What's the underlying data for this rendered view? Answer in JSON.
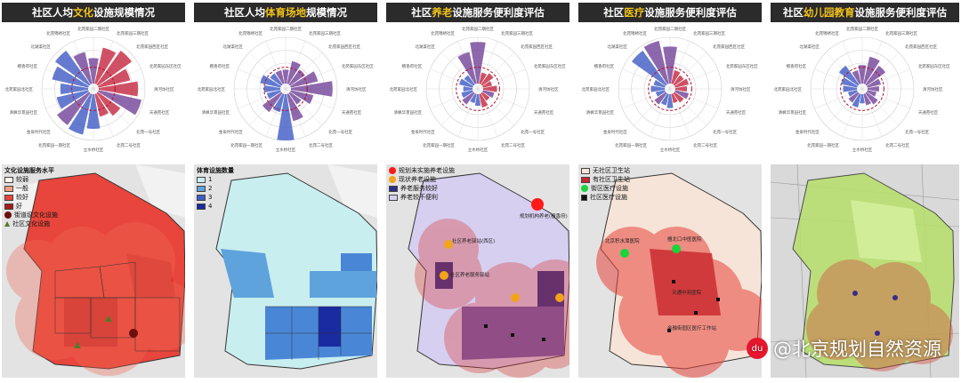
{
  "panels": [
    {
      "title_pre": "社区人均",
      "title_hl": "文化",
      "title_post": "设施规模情况",
      "legend_title": "文化设施服务水平",
      "legend": [
        "较弱",
        "一般",
        "较好",
        "好",
        "街道级文化设施",
        "社区文化设施"
      ]
    },
    {
      "title_pre": "社区人均",
      "title_hl": "体育场地",
      "title_post": "规模情况",
      "legend_title": "体育设施数量",
      "legend": [
        "1",
        "2",
        "3",
        "4"
      ]
    },
    {
      "title_pre": "社区",
      "title_hl": "养老",
      "title_post": "设施服务便利度评估",
      "legend": [
        "规划未实施养老设施",
        "现状养老设施",
        "养老服务较好",
        "养老较不便利"
      ],
      "map_labels": [
        "社区养老驿站(西区)",
        "规划机构养老(檀香府)",
        "社区养老服务驿站"
      ]
    },
    {
      "title_pre": "社区",
      "title_hl": "医疗",
      "title_post": "设施服务便利度评估",
      "legend": [
        "无社区卫生站",
        "有社区卫生站",
        "街区医疗设施",
        "社区医疗设施"
      ],
      "map_labels": [
        "北京积水潭医院",
        "檀北口中医医院",
        "天通中苑医院",
        "金融街园区医疗工作站"
      ]
    },
    {
      "title_pre": "社区",
      "title_hl": "幼儿园教育",
      "title_post": "设施服务便利度评估"
    }
  ],
  "radar_labels": [
    "北苑家园二期社区",
    "北苑家园三期社区",
    "北苑家园西区社区",
    "北苑家园东区社区",
    "清河坊社区",
    "天通苑社区",
    "北苑一号社区",
    "北苑二号社区",
    "立水桥社区",
    "北苑家园一期社区",
    "金泉时代社区",
    "清枫华景园社区",
    "北苑家园北社区",
    "檀香府社区",
    "北湖渠社区",
    "北苑锦绣社区"
  ],
  "watermark": {
    "logo": "du",
    "text": "@北京规划自然资源"
  },
  "colors": {
    "title_bg": "#2b2b2b",
    "highlight": "#f2c21b",
    "blue": "#4a64c8",
    "red": "#c8324a",
    "purple": "#7a4e9e"
  }
}
